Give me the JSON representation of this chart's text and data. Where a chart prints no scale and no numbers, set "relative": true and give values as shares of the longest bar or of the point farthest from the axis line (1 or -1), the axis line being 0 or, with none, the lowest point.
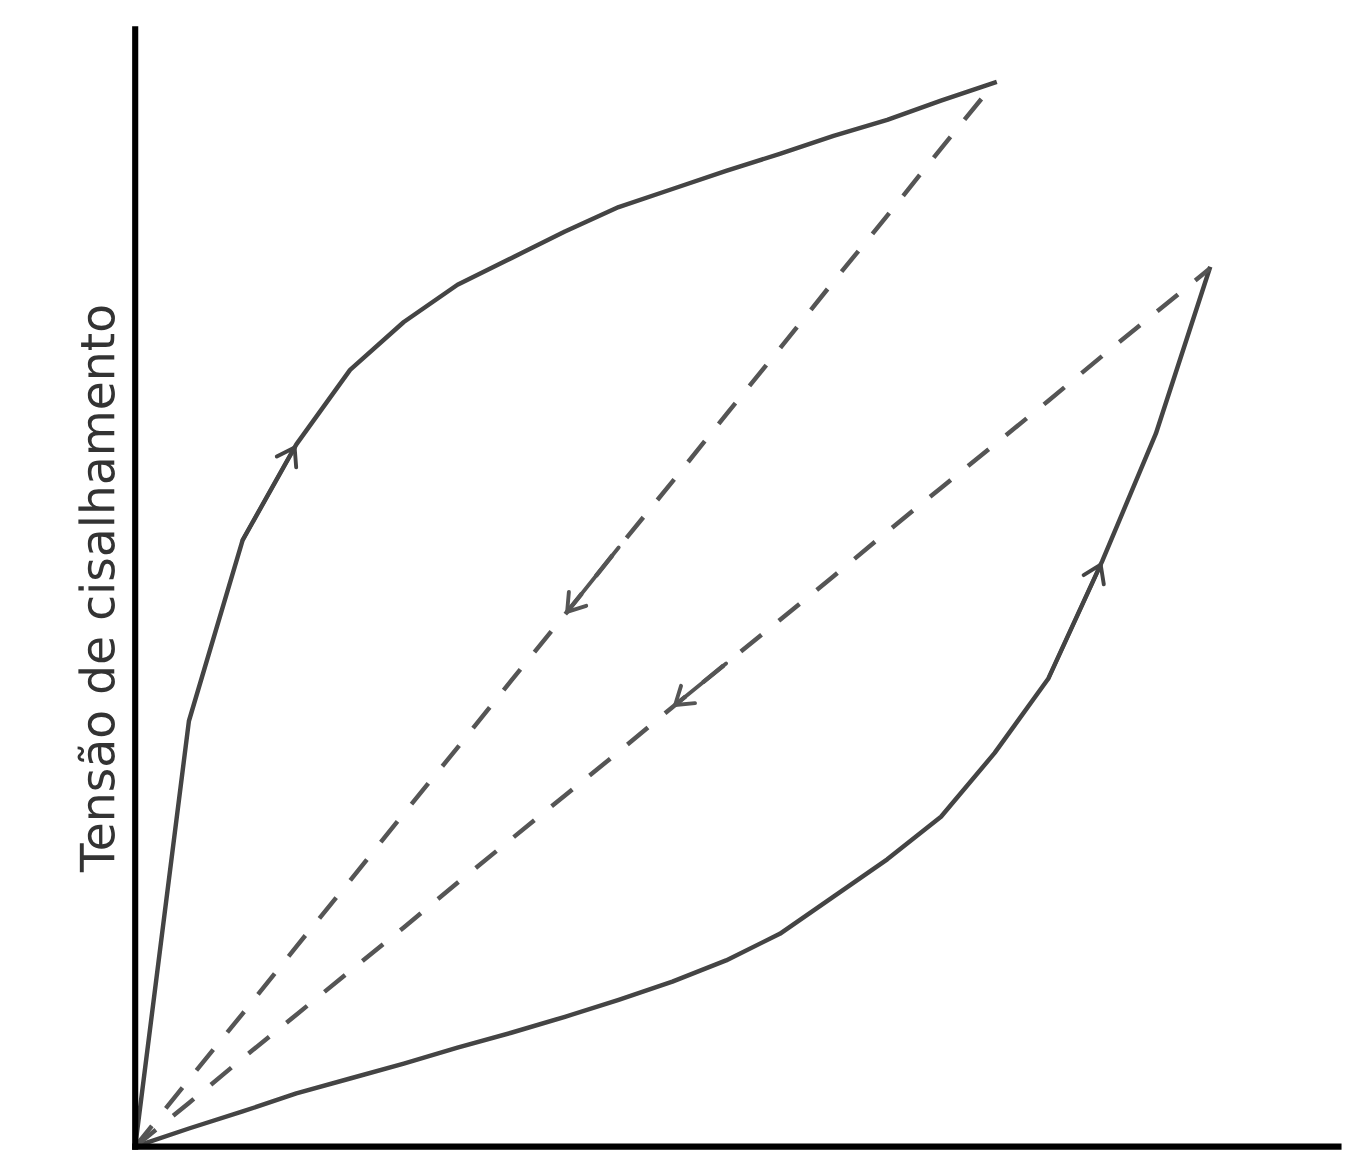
{
  "chart_data": {
    "type": "line",
    "relative": true,
    "ylabel": "Tensão de cisalhamento",
    "categories": [
      null,
      null,
      null,
      null,
      null,
      null,
      null,
      null,
      null,
      null,
      null,
      null,
      null,
      null,
      null,
      null,
      null,
      null,
      null,
      null,
      null
    ],
    "series": [
      {
        "color": "#444444",
        "line_style": "solid",
        "values": [
          0,
          0.4,
          0.57,
          0.66,
          0.73,
          0.775,
          0.81,
          0.835,
          0.86,
          0.883,
          0.9,
          0.917,
          0.933,
          0.95,
          0.965,
          0.983,
          1.0,
          null,
          null,
          null,
          null
        ]
      },
      {
        "color": "#444444",
        "line_style": "solid",
        "values": [
          0,
          0.017,
          0.033,
          0.05,
          0.064,
          0.078,
          0.093,
          0.107,
          0.122,
          0.138,
          0.155,
          0.175,
          0.2,
          0.235,
          0.27,
          0.31,
          0.37,
          0.44,
          0.55,
          0.67,
          0.825
        ]
      },
      {
        "color": "#555555",
        "line_style": "dashed",
        "values": [
          0,
          0.063,
          0.125,
          0.188,
          0.25,
          0.313,
          0.375,
          0.438,
          0.5,
          0.563,
          0.625,
          0.688,
          0.75,
          0.813,
          0.875,
          0.938,
          1.0,
          null,
          null,
          null,
          null
        ]
      },
      {
        "color": "#555555",
        "line_style": "dashed",
        "values": [
          0,
          0.041,
          0.083,
          0.124,
          0.165,
          0.206,
          0.248,
          0.289,
          0.33,
          0.371,
          0.413,
          0.454,
          0.495,
          0.536,
          0.578,
          0.619,
          0.66,
          0.701,
          0.743,
          0.784,
          0.825
        ]
      }
    ]
  }
}
